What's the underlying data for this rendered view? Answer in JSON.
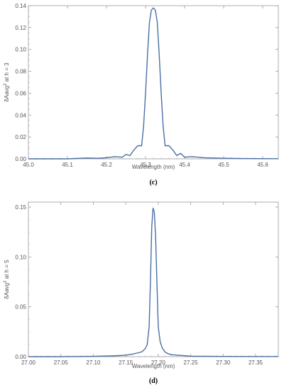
{
  "chart_data": [
    {
      "type": "line",
      "caption": "(c)",
      "xlabel": "Wavelength   (nm)",
      "ylabel_prefix": "δAavg",
      "ylabel_sup": "2",
      "ylabel_suffix": " at  h = 3",
      "xlim": [
        45.0,
        45.64
      ],
      "ylim": [
        0,
        0.14
      ],
      "xticks": [
        "45.0",
        "45.1",
        "45.2",
        "45.3",
        "45.4",
        "45.5",
        "45.6"
      ],
      "xtick_values": [
        45.0,
        45.1,
        45.2,
        45.3,
        45.4,
        45.5,
        45.6
      ],
      "yticks": [
        "0.00",
        "0.02",
        "0.04",
        "0.06",
        "0.08",
        "0.10",
        "0.12",
        "0.14"
      ],
      "ytick_values": [
        0.0,
        0.02,
        0.04,
        0.06,
        0.08,
        0.1,
        0.12,
        0.14
      ],
      "series": [
        {
          "color": "#4a6fa5",
          "x": [
            45.0,
            45.05,
            45.1,
            45.15,
            45.18,
            45.2,
            45.22,
            45.24,
            45.25,
            45.26,
            45.27,
            45.28,
            45.29,
            45.295,
            45.3,
            45.305,
            45.31,
            45.315,
            45.32,
            45.325,
            45.33,
            45.335,
            45.34,
            45.345,
            45.35,
            45.36,
            45.37,
            45.38,
            45.39,
            45.4,
            45.42,
            45.45,
            45.5,
            45.55,
            45.6,
            45.64
          ],
          "y": [
            0.0,
            0.0,
            0.0,
            0.0008,
            0.0005,
            0.001,
            0.002,
            0.0015,
            0.004,
            0.003,
            0.008,
            0.012,
            0.012,
            0.03,
            0.06,
            0.095,
            0.125,
            0.136,
            0.138,
            0.136,
            0.125,
            0.095,
            0.06,
            0.03,
            0.012,
            0.012,
            0.008,
            0.003,
            0.005,
            0.0015,
            0.002,
            0.001,
            0.0005,
            0.0003,
            0.0002,
            0.0001
          ]
        }
      ]
    },
    {
      "type": "line",
      "caption": "(d)",
      "xlabel": "Wavelength   (nm)",
      "ylabel_prefix": "δAavg",
      "ylabel_sup": "2",
      "ylabel_suffix": " at  h = 5",
      "xlim": [
        27.0,
        27.385
      ],
      "ylim": [
        0,
        0.155
      ],
      "xticks": [
        "27.00",
        "27.05",
        "27.10",
        "27.15",
        "27.20",
        "27.25",
        "27.30",
        "27.35"
      ],
      "xtick_values": [
        27.0,
        27.05,
        27.1,
        27.15,
        27.2,
        27.25,
        27.3,
        27.35
      ],
      "yticks": [
        "0.00",
        "0.05",
        "0.10",
        "0.15"
      ],
      "ytick_values": [
        0.0,
        0.05,
        0.1,
        0.15
      ],
      "series": [
        {
          "color": "#4a6fa5",
          "x": [
            27.0,
            27.05,
            27.1,
            27.13,
            27.15,
            27.16,
            27.17,
            27.175,
            27.18,
            27.183,
            27.186,
            27.188,
            27.19,
            27.192,
            27.194,
            27.196,
            27.198,
            27.2,
            27.203,
            27.206,
            27.21,
            27.215,
            27.22,
            27.23,
            27.24,
            27.25,
            27.3,
            27.385
          ],
          "y": [
            0.0,
            0.0,
            0.0003,
            0.0008,
            0.0015,
            0.0025,
            0.004,
            0.005,
            0.008,
            0.012,
            0.03,
            0.075,
            0.13,
            0.149,
            0.145,
            0.12,
            0.075,
            0.03,
            0.015,
            0.009,
            0.005,
            0.003,
            0.002,
            0.0015,
            0.001,
            0.0005,
            0.0002,
            0.0001
          ]
        }
      ]
    }
  ]
}
